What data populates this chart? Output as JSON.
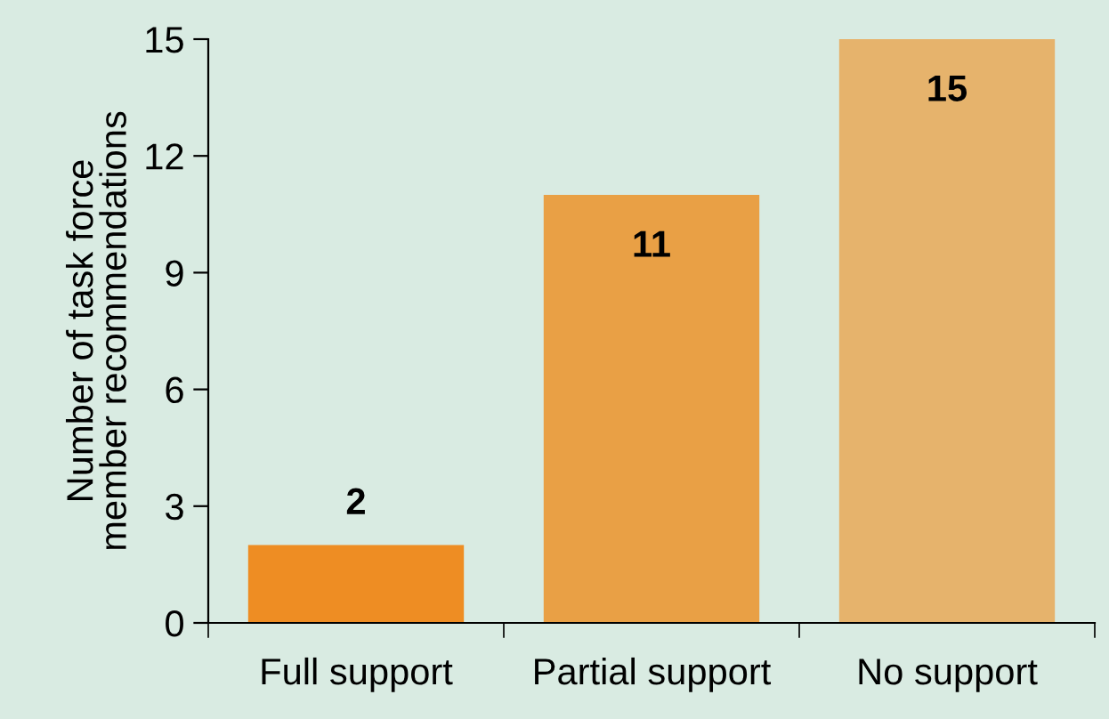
{
  "chart_data": {
    "type": "bar",
    "ylabel": "Number of task force\nmember recommendations",
    "categories": [
      "Full support",
      "Partial support",
      "No support"
    ],
    "values": [
      2,
      11,
      15
    ],
    "colors": [
      "#ee8d23",
      "#e9a045",
      "#e6b36c"
    ],
    "ylim": [
      0,
      15
    ],
    "yticks": [
      0,
      3,
      6,
      9,
      12,
      15
    ],
    "grid": false,
    "data_labels": true
  }
}
